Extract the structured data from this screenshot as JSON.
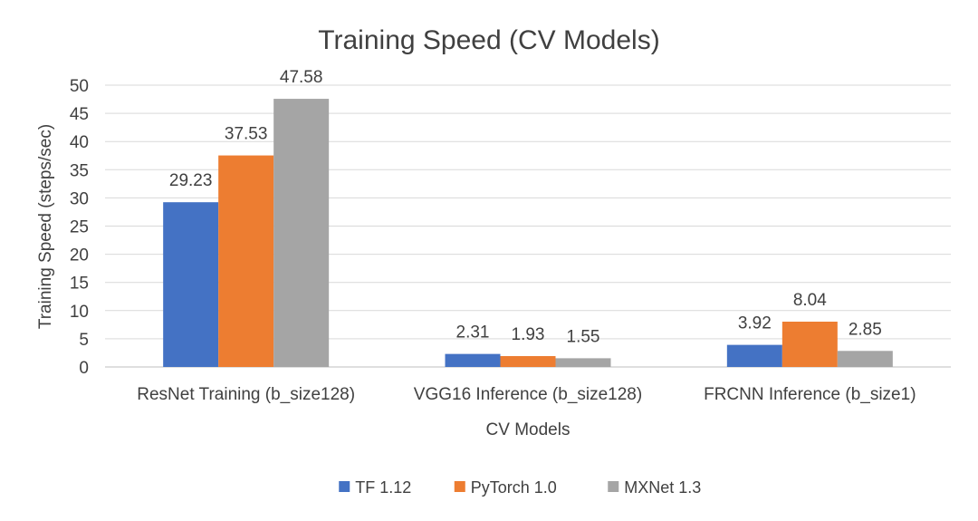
{
  "chart_data": {
    "type": "bar",
    "title": "Training Speed (CV Models)",
    "xlabel": "CV Models",
    "ylabel": "Training Speed (steps/sec)",
    "ylim": [
      0,
      50
    ],
    "ytick_step": 5,
    "grid": true,
    "legend_position": "bottom",
    "categories": [
      "ResNet Training (b_size128)",
      "VGG16 Inference (b_size128)",
      "FRCNN Inference (b_size1)"
    ],
    "series": [
      {
        "name": "TF 1.12",
        "color": "#4472C4",
        "values": [
          29.23,
          2.31,
          3.92
        ],
        "labels": [
          "29.23",
          "2.31",
          "3.92"
        ]
      },
      {
        "name": "PyTorch 1.0",
        "color": "#ED7D31",
        "values": [
          37.53,
          1.93,
          8.04
        ],
        "labels": [
          "37.53",
          "1.93",
          "8.04"
        ]
      },
      {
        "name": "MXNet 1.3",
        "color": "#A5A5A5",
        "values": [
          47.58,
          1.55,
          2.85
        ],
        "labels": [
          "47.58",
          "1.55",
          "2.85"
        ]
      }
    ]
  }
}
